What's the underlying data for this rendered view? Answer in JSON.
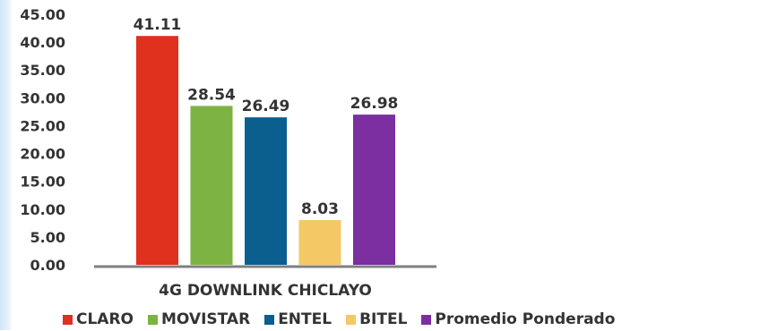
{
  "chart_data": {
    "type": "bar",
    "title": "",
    "xlabel": "",
    "ylabel": "",
    "categories": [
      "4G DOWNLINK CHICLAYO"
    ],
    "series": [
      {
        "name": "CLARO",
        "values": [
          41.11
        ],
        "color": "#e0301e"
      },
      {
        "name": "MOVISTAR",
        "values": [
          28.54
        ],
        "color": "#7cb342"
      },
      {
        "name": "ENTEL",
        "values": [
          26.49
        ],
        "color": "#0b5f8f"
      },
      {
        "name": "BITEL",
        "values": [
          8.03
        ],
        "color": "#f3c865"
      },
      {
        "name": "Promedio Ponderado",
        "values": [
          26.98
        ],
        "color": "#7b2fa0"
      }
    ],
    "data_labels": [
      "41.11",
      "28.54",
      "26.49",
      "8.03",
      "26.98"
    ],
    "ylim": [
      0,
      45
    ],
    "yticks": [
      0,
      5,
      10,
      15,
      20,
      25,
      30,
      35,
      40,
      45
    ],
    "ytick_labels": [
      "0.00",
      "5.00",
      "10.00",
      "15.00",
      "20.00",
      "25.00",
      "30.00",
      "35.00",
      "40.00",
      "45.00"
    ],
    "grid": false,
    "legend_position": "bottom"
  }
}
